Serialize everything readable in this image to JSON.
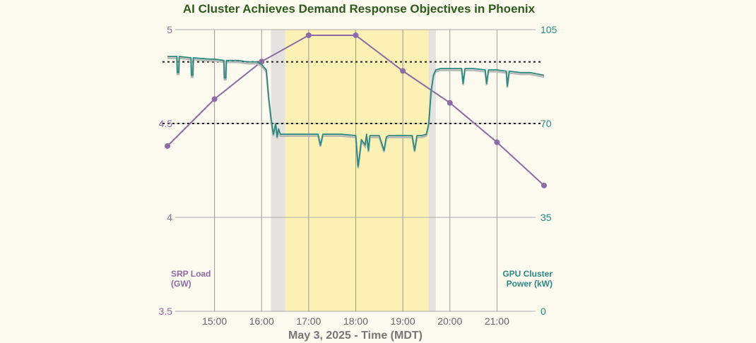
{
  "chart_data": {
    "type": "line",
    "title": "AI Cluster Achieves Demand Response Objectives in Phoenix",
    "xlabel": "May 3, 2025 - Time (MDT)",
    "x_tick_labels": [
      "15:00",
      "16:00",
      "17:00",
      "18:00",
      "19:00",
      "20:00",
      "21:00"
    ],
    "x_ticks_hours": [
      15,
      16,
      17,
      18,
      19,
      20,
      21
    ],
    "xlim_hours": [
      14.0,
      22.0
    ],
    "left_axis": {
      "label_line1": "SRP Load",
      "label_line2": "(GW)",
      "ylim": [
        3.5,
        5.0
      ],
      "ticks": [
        5,
        4.5,
        4,
        3.5
      ],
      "tick_labels": [
        "5",
        "4.5",
        "4",
        "3.5"
      ],
      "color": "#8e6aa8"
    },
    "right_axis": {
      "label_line1": "GPU Cluster",
      "label_line2": "Power (kW)",
      "ylim": [
        0,
        105
      ],
      "ticks": [
        105,
        70,
        35,
        0
      ],
      "tick_labels": [
        "105",
        "70",
        "35",
        "0"
      ],
      "color": "#2a8a80"
    },
    "series": [
      {
        "name": "SRP Load",
        "axis": "left",
        "color": "#8e6aa8",
        "x": [
          14.0,
          15.0,
          16.0,
          17.0,
          18.0,
          19.0,
          20.0,
          21.0,
          22.0
        ],
        "values": [
          4.38,
          4.63,
          4.83,
          4.97,
          4.97,
          4.78,
          4.61,
          4.4,
          4.17
        ]
      },
      {
        "name": "GPU Cluster Power",
        "axis": "right",
        "color": "#2a8a80",
        "x": [
          14.0,
          14.2,
          14.21,
          14.24,
          14.25,
          14.5,
          14.51,
          14.54,
          14.55,
          14.9,
          15.0,
          15.2,
          15.21,
          15.24,
          15.25,
          15.5,
          15.7,
          15.9,
          16.0,
          16.1,
          16.15,
          16.2,
          16.25,
          16.3,
          16.33,
          16.36,
          16.4,
          16.5,
          16.8,
          17.2,
          17.25,
          17.3,
          17.7,
          18.0,
          18.05,
          18.08,
          18.12,
          18.2,
          18.23,
          18.27,
          18.3,
          18.5,
          18.6,
          18.65,
          18.7,
          19.0,
          19.2,
          19.25,
          19.3,
          19.4,
          19.5,
          19.55,
          19.6,
          19.65,
          19.7,
          19.8,
          20.0,
          20.25,
          20.28,
          20.32,
          20.5,
          20.75,
          20.78,
          20.82,
          21.0,
          21.2,
          21.22,
          21.26,
          21.5,
          21.7,
          22.0
        ],
        "values": [
          95,
          95,
          89,
          89,
          95,
          94.5,
          88,
          88,
          94.5,
          94,
          94,
          93.5,
          87,
          87,
          93.5,
          93.5,
          93,
          93,
          92,
          90,
          80,
          72,
          66,
          70,
          65,
          68,
          66,
          66,
          66,
          66,
          62,
          66,
          66,
          65.5,
          54,
          58,
          64,
          62,
          66,
          60,
          65.5,
          65.5,
          60,
          65,
          65.5,
          65.5,
          65.5,
          60,
          65.5,
          65.5,
          66,
          70,
          82,
          88,
          90,
          90.5,
          90.5,
          90.5,
          85,
          90.5,
          90.5,
          90,
          85,
          90,
          90,
          89.5,
          84,
          89.5,
          89,
          89,
          88
        ]
      }
    ],
    "shaded_regions": [
      {
        "name": "transition-start",
        "x": [
          16.2,
          16.5
        ],
        "color": "#e4e3df"
      },
      {
        "name": "event-window",
        "x": [
          16.5,
          19.55
        ],
        "color": "#fbf1b4"
      },
      {
        "name": "transition-end",
        "x": [
          19.55,
          19.7
        ],
        "color": "#e4e3df"
      }
    ],
    "reference_lines": [
      {
        "name": "baseline",
        "axis": "right",
        "value": 93
      },
      {
        "name": "target",
        "axis": "right",
        "value": 70
      }
    ],
    "grid": true
  }
}
